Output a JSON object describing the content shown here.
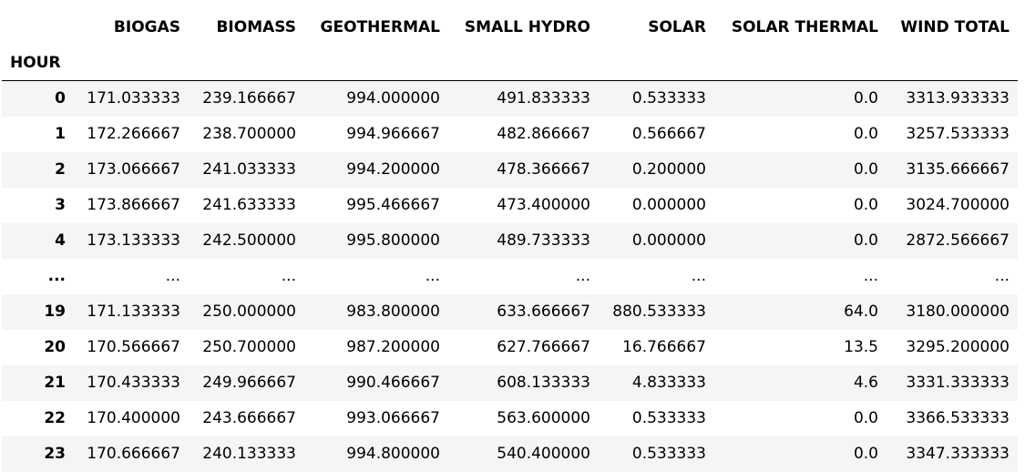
{
  "table": {
    "index_name": "HOUR",
    "columns": [
      "BIOGAS",
      "BIOMASS",
      "GEOTHERMAL",
      "SMALL HYDRO",
      "SOLAR",
      "SOLAR THERMAL",
      "WIND TOTAL"
    ],
    "rows": [
      {
        "index": "0",
        "cells": [
          "171.033333",
          "239.166667",
          "994.000000",
          "491.833333",
          "0.533333",
          "0.0",
          "3313.933333"
        ]
      },
      {
        "index": "1",
        "cells": [
          "172.266667",
          "238.700000",
          "994.966667",
          "482.866667",
          "0.566667",
          "0.0",
          "3257.533333"
        ]
      },
      {
        "index": "2",
        "cells": [
          "173.066667",
          "241.033333",
          "994.200000",
          "478.366667",
          "0.200000",
          "0.0",
          "3135.666667"
        ]
      },
      {
        "index": "3",
        "cells": [
          "173.866667",
          "241.633333",
          "995.466667",
          "473.400000",
          "0.000000",
          "0.0",
          "3024.700000"
        ]
      },
      {
        "index": "4",
        "cells": [
          "173.133333",
          "242.500000",
          "995.800000",
          "489.733333",
          "0.000000",
          "0.0",
          "2872.566667"
        ]
      },
      {
        "index": "...",
        "cells": [
          "...",
          "...",
          "...",
          "...",
          "...",
          "...",
          "..."
        ]
      },
      {
        "index": "19",
        "cells": [
          "171.133333",
          "250.000000",
          "983.800000",
          "633.666667",
          "880.533333",
          "64.0",
          "3180.000000"
        ]
      },
      {
        "index": "20",
        "cells": [
          "170.566667",
          "250.700000",
          "987.200000",
          "627.766667",
          "16.766667",
          "13.5",
          "3295.200000"
        ]
      },
      {
        "index": "21",
        "cells": [
          "170.433333",
          "249.966667",
          "990.466667",
          "608.133333",
          "4.833333",
          "4.6",
          "3331.333333"
        ]
      },
      {
        "index": "22",
        "cells": [
          "170.400000",
          "243.666667",
          "993.066667",
          "563.600000",
          "0.533333",
          "0.0",
          "3366.533333"
        ]
      },
      {
        "index": "23",
        "cells": [
          "170.666667",
          "240.133333",
          "994.800000",
          "540.400000",
          "0.533333",
          "0.0",
          "3347.333333"
        ]
      }
    ]
  }
}
